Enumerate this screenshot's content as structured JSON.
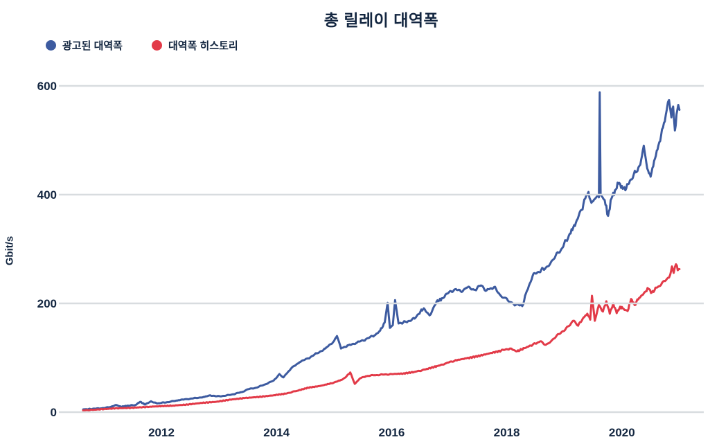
{
  "colors": {
    "background": "#ffffff",
    "text": "#132640",
    "grid": "#d8dcdf"
  },
  "chart_data": {
    "type": "line",
    "title": "총 릴레이 대역폭",
    "ylabel": "Gbit/s",
    "xlabel": "",
    "grid": "horizontal",
    "legend_position": "top-left",
    "x_axis": {
      "min": 2010.6,
      "max": 2021.1,
      "ticks": [
        2012,
        2014,
        2016,
        2018,
        2020
      ]
    },
    "y_axis": {
      "min": 0,
      "max": 640,
      "ticks": [
        0,
        200,
        400,
        600
      ],
      "unit": "Gbit/s"
    },
    "series": [
      {
        "name": "광고된 대역폭",
        "color": "#3d5ba0",
        "points": [
          [
            2010.64,
            5
          ],
          [
            2010.8,
            6
          ],
          [
            2010.95,
            7
          ],
          [
            2011.1,
            9
          ],
          [
            2011.2,
            13
          ],
          [
            2011.3,
            10
          ],
          [
            2011.42,
            12
          ],
          [
            2011.55,
            13
          ],
          [
            2011.63,
            19
          ],
          [
            2011.72,
            14
          ],
          [
            2011.82,
            20
          ],
          [
            2011.92,
            16
          ],
          [
            2012.0,
            17
          ],
          [
            2012.15,
            19
          ],
          [
            2012.3,
            22
          ],
          [
            2012.45,
            24
          ],
          [
            2012.6,
            26
          ],
          [
            2012.75,
            28
          ],
          [
            2012.85,
            31
          ],
          [
            2012.95,
            29
          ],
          [
            2013.1,
            30
          ],
          [
            2013.25,
            33
          ],
          [
            2013.4,
            37
          ],
          [
            2013.5,
            42
          ],
          [
            2013.65,
            45
          ],
          [
            2013.8,
            51
          ],
          [
            2013.95,
            58
          ],
          [
            2014.05,
            70
          ],
          [
            2014.12,
            64
          ],
          [
            2014.25,
            80
          ],
          [
            2014.4,
            92
          ],
          [
            2014.55,
            99
          ],
          [
            2014.7,
            108
          ],
          [
            2014.85,
            117
          ],
          [
            2015.0,
            131
          ],
          [
            2015.05,
            140
          ],
          [
            2015.12,
            117
          ],
          [
            2015.25,
            123
          ],
          [
            2015.4,
            128
          ],
          [
            2015.55,
            134
          ],
          [
            2015.7,
            141
          ],
          [
            2015.8,
            150
          ],
          [
            2015.88,
            165
          ],
          [
            2015.93,
            201
          ],
          [
            2015.97,
            155
          ],
          [
            2016.02,
            160
          ],
          [
            2016.06,
            206
          ],
          [
            2016.12,
            163
          ],
          [
            2016.25,
            166
          ],
          [
            2016.4,
            172
          ],
          [
            2016.5,
            185
          ],
          [
            2016.56,
            191
          ],
          [
            2016.66,
            178
          ],
          [
            2016.78,
            203
          ],
          [
            2016.9,
            210
          ],
          [
            2017.0,
            221
          ],
          [
            2017.1,
            226
          ],
          [
            2017.2,
            222
          ],
          [
            2017.3,
            229
          ],
          [
            2017.45,
            225
          ],
          [
            2017.55,
            233
          ],
          [
            2017.65,
            224
          ],
          [
            2017.78,
            230
          ],
          [
            2017.88,
            216
          ],
          [
            2018.0,
            209
          ],
          [
            2018.12,
            199
          ],
          [
            2018.27,
            195
          ],
          [
            2018.35,
            223
          ],
          [
            2018.45,
            251
          ],
          [
            2018.55,
            258
          ],
          [
            2018.68,
            266
          ],
          [
            2018.8,
            280
          ],
          [
            2018.95,
            300
          ],
          [
            2019.08,
            325
          ],
          [
            2019.2,
            348
          ],
          [
            2019.3,
            372
          ],
          [
            2019.38,
            398
          ],
          [
            2019.42,
            405
          ],
          [
            2019.47,
            385
          ],
          [
            2019.53,
            392
          ],
          [
            2019.6,
            395
          ],
          [
            2019.615,
            588
          ],
          [
            2019.63,
            400
          ],
          [
            2019.7,
            390
          ],
          [
            2019.76,
            361
          ],
          [
            2019.82,
            393
          ],
          [
            2019.88,
            408
          ],
          [
            2019.94,
            420
          ],
          [
            2020.0,
            416
          ],
          [
            2020.06,
            408
          ],
          [
            2020.14,
            426
          ],
          [
            2020.24,
            441
          ],
          [
            2020.32,
            455
          ],
          [
            2020.38,
            490
          ],
          [
            2020.44,
            448
          ],
          [
            2020.5,
            433
          ],
          [
            2020.56,
            462
          ],
          [
            2020.62,
            483
          ],
          [
            2020.68,
            508
          ],
          [
            2020.73,
            532
          ],
          [
            2020.78,
            556
          ],
          [
            2020.82,
            574
          ],
          [
            2020.86,
            542
          ],
          [
            2020.89,
            562
          ],
          [
            2020.92,
            518
          ],
          [
            2020.95,
            548
          ],
          [
            2020.98,
            565
          ],
          [
            2021.0,
            556
          ]
        ]
      },
      {
        "name": "대역폭 히스토리",
        "color": "#e23a48",
        "points": [
          [
            2010.64,
            3
          ],
          [
            2010.9,
            5
          ],
          [
            2011.2,
            7
          ],
          [
            2011.5,
            8
          ],
          [
            2011.8,
            10
          ],
          [
            2012.0,
            11
          ],
          [
            2012.2,
            12
          ],
          [
            2012.45,
            14
          ],
          [
            2012.7,
            17
          ],
          [
            2012.95,
            19
          ],
          [
            2013.2,
            23
          ],
          [
            2013.45,
            26
          ],
          [
            2013.7,
            28
          ],
          [
            2013.95,
            31
          ],
          [
            2014.15,
            34
          ],
          [
            2014.35,
            39
          ],
          [
            2014.55,
            45
          ],
          [
            2014.75,
            48
          ],
          [
            2014.95,
            53
          ],
          [
            2015.1,
            58
          ],
          [
            2015.2,
            64
          ],
          [
            2015.28,
            73
          ],
          [
            2015.36,
            52
          ],
          [
            2015.45,
            62
          ],
          [
            2015.55,
            66
          ],
          [
            2015.7,
            68
          ],
          [
            2015.85,
            69
          ],
          [
            2016.0,
            70
          ],
          [
            2016.2,
            71
          ],
          [
            2016.4,
            74
          ],
          [
            2016.6,
            79
          ],
          [
            2016.8,
            85
          ],
          [
            2016.95,
            90
          ],
          [
            2017.1,
            95
          ],
          [
            2017.3,
            99
          ],
          [
            2017.5,
            103
          ],
          [
            2017.7,
            108
          ],
          [
            2017.9,
            113
          ],
          [
            2018.05,
            117
          ],
          [
            2018.18,
            112
          ],
          [
            2018.32,
            118
          ],
          [
            2018.45,
            124
          ],
          [
            2018.58,
            130
          ],
          [
            2018.68,
            124
          ],
          [
            2018.8,
            134
          ],
          [
            2018.95,
            147
          ],
          [
            2019.1,
            160
          ],
          [
            2019.17,
            168
          ],
          [
            2019.24,
            159
          ],
          [
            2019.32,
            172
          ],
          [
            2019.4,
            181
          ],
          [
            2019.45,
            170
          ],
          [
            2019.48,
            214
          ],
          [
            2019.53,
            168
          ],
          [
            2019.6,
            197
          ],
          [
            2019.67,
            185
          ],
          [
            2019.73,
            204
          ],
          [
            2019.79,
            181
          ],
          [
            2019.85,
            200
          ],
          [
            2019.91,
            182
          ],
          [
            2019.97,
            194
          ],
          [
            2020.03,
            190
          ],
          [
            2020.1,
            186
          ],
          [
            2020.16,
            208
          ],
          [
            2020.22,
            197
          ],
          [
            2020.3,
            210
          ],
          [
            2020.4,
            221
          ],
          [
            2020.46,
            227
          ],
          [
            2020.52,
            220
          ],
          [
            2020.6,
            229
          ],
          [
            2020.68,
            234
          ],
          [
            2020.75,
            241
          ],
          [
            2020.8,
            247
          ],
          [
            2020.84,
            253
          ],
          [
            2020.87,
            268
          ],
          [
            2020.9,
            256
          ],
          [
            2020.94,
            272
          ],
          [
            2020.97,
            261
          ],
          [
            2021.0,
            263
          ]
        ]
      }
    ]
  }
}
